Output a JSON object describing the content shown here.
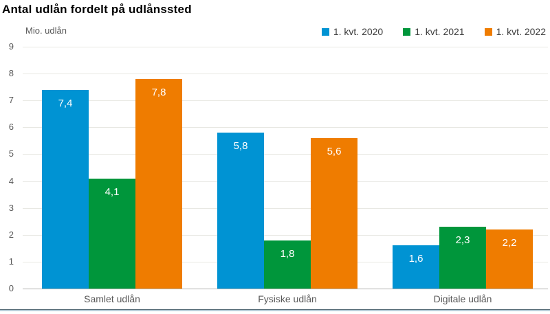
{
  "chart_data": {
    "type": "bar",
    "title": "Antal udlån fordelt på udlånssted",
    "ylabel": "Mio. udlån",
    "categories": [
      "Samlet udlån",
      "Fysiske udlån",
      "Digitale udlån"
    ],
    "series": [
      {
        "name": "1. kvt. 2020",
        "color": "#0093d3",
        "values": [
          7.4,
          5.8,
          1.6
        ]
      },
      {
        "name": "1. kvt. 2021",
        "color": "#00963b",
        "values": [
          4.1,
          1.8,
          2.3
        ]
      },
      {
        "name": "1. kvt. 2022",
        "color": "#ef7c00",
        "values": [
          7.8,
          5.6,
          2.2
        ]
      }
    ],
    "ylim": [
      0,
      9
    ],
    "ytick_step": 1,
    "decimal_separator": ",",
    "grid": true,
    "legend_position": "top-right",
    "value_labels_inside_bars": true
  }
}
